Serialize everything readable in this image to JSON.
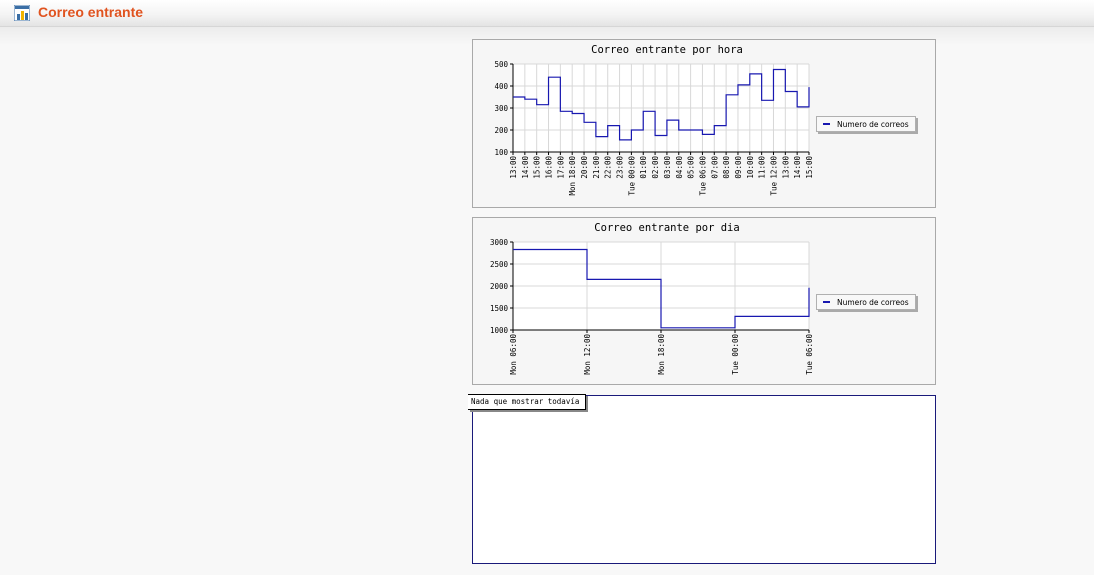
{
  "header": {
    "title": "Correo entrante",
    "icon": "bar-chart-icon"
  },
  "colors": {
    "accent": "#e0531f",
    "series": "#1818b0"
  },
  "note": {
    "text": "Nada que mostrar todavía"
  },
  "chart_data": [
    {
      "type": "line",
      "step": true,
      "title": "Correo entrante por hora",
      "ylim": [
        100,
        500
      ],
      "yticks": [
        100,
        200,
        300,
        400,
        500
      ],
      "categories": [
        "13:00",
        "14:00",
        "15:00",
        "16:00",
        "17:00",
        "18:00",
        "20:00",
        "21:00",
        "22:00",
        "23:00",
        "00:00",
        "01:00",
        "02:00",
        "03:00",
        "04:00",
        "05:00",
        "06:00",
        "07:00",
        "08:00",
        "09:00",
        "10:00",
        "11:00",
        "12:00",
        "13:00",
        "14:00",
        "15:00"
      ],
      "day_labels": [
        {
          "index": 5,
          "label": "Mon"
        },
        {
          "index": 10,
          "label": "Tue"
        },
        {
          "index": 16,
          "label": "Tue"
        },
        {
          "index": 22,
          "label": "Tue"
        }
      ],
      "series": [
        {
          "name": "Numero de correos",
          "values": [
            350,
            340,
            315,
            440,
            285,
            275,
            235,
            170,
            220,
            155,
            200,
            285,
            175,
            245,
            200,
            200,
            180,
            220,
            360,
            405,
            455,
            335,
            475,
            375,
            305,
            395
          ]
        }
      ],
      "legend": "right",
      "grid": true
    },
    {
      "type": "line",
      "step": true,
      "title": "Correo entrante por dia",
      "ylim": [
        1000,
        3000
      ],
      "yticks": [
        1000,
        1500,
        2000,
        2500,
        3000
      ],
      "categories": [
        "Mon 06:00",
        "Mon 12:00",
        "Mon 18:00",
        "Tue 00:00",
        "Tue 06:00"
      ],
      "series": [
        {
          "name": "Numero de correos",
          "values": [
            2830,
            2150,
            1050,
            1310,
            1960
          ]
        }
      ],
      "legend": "right",
      "grid": true
    }
  ]
}
